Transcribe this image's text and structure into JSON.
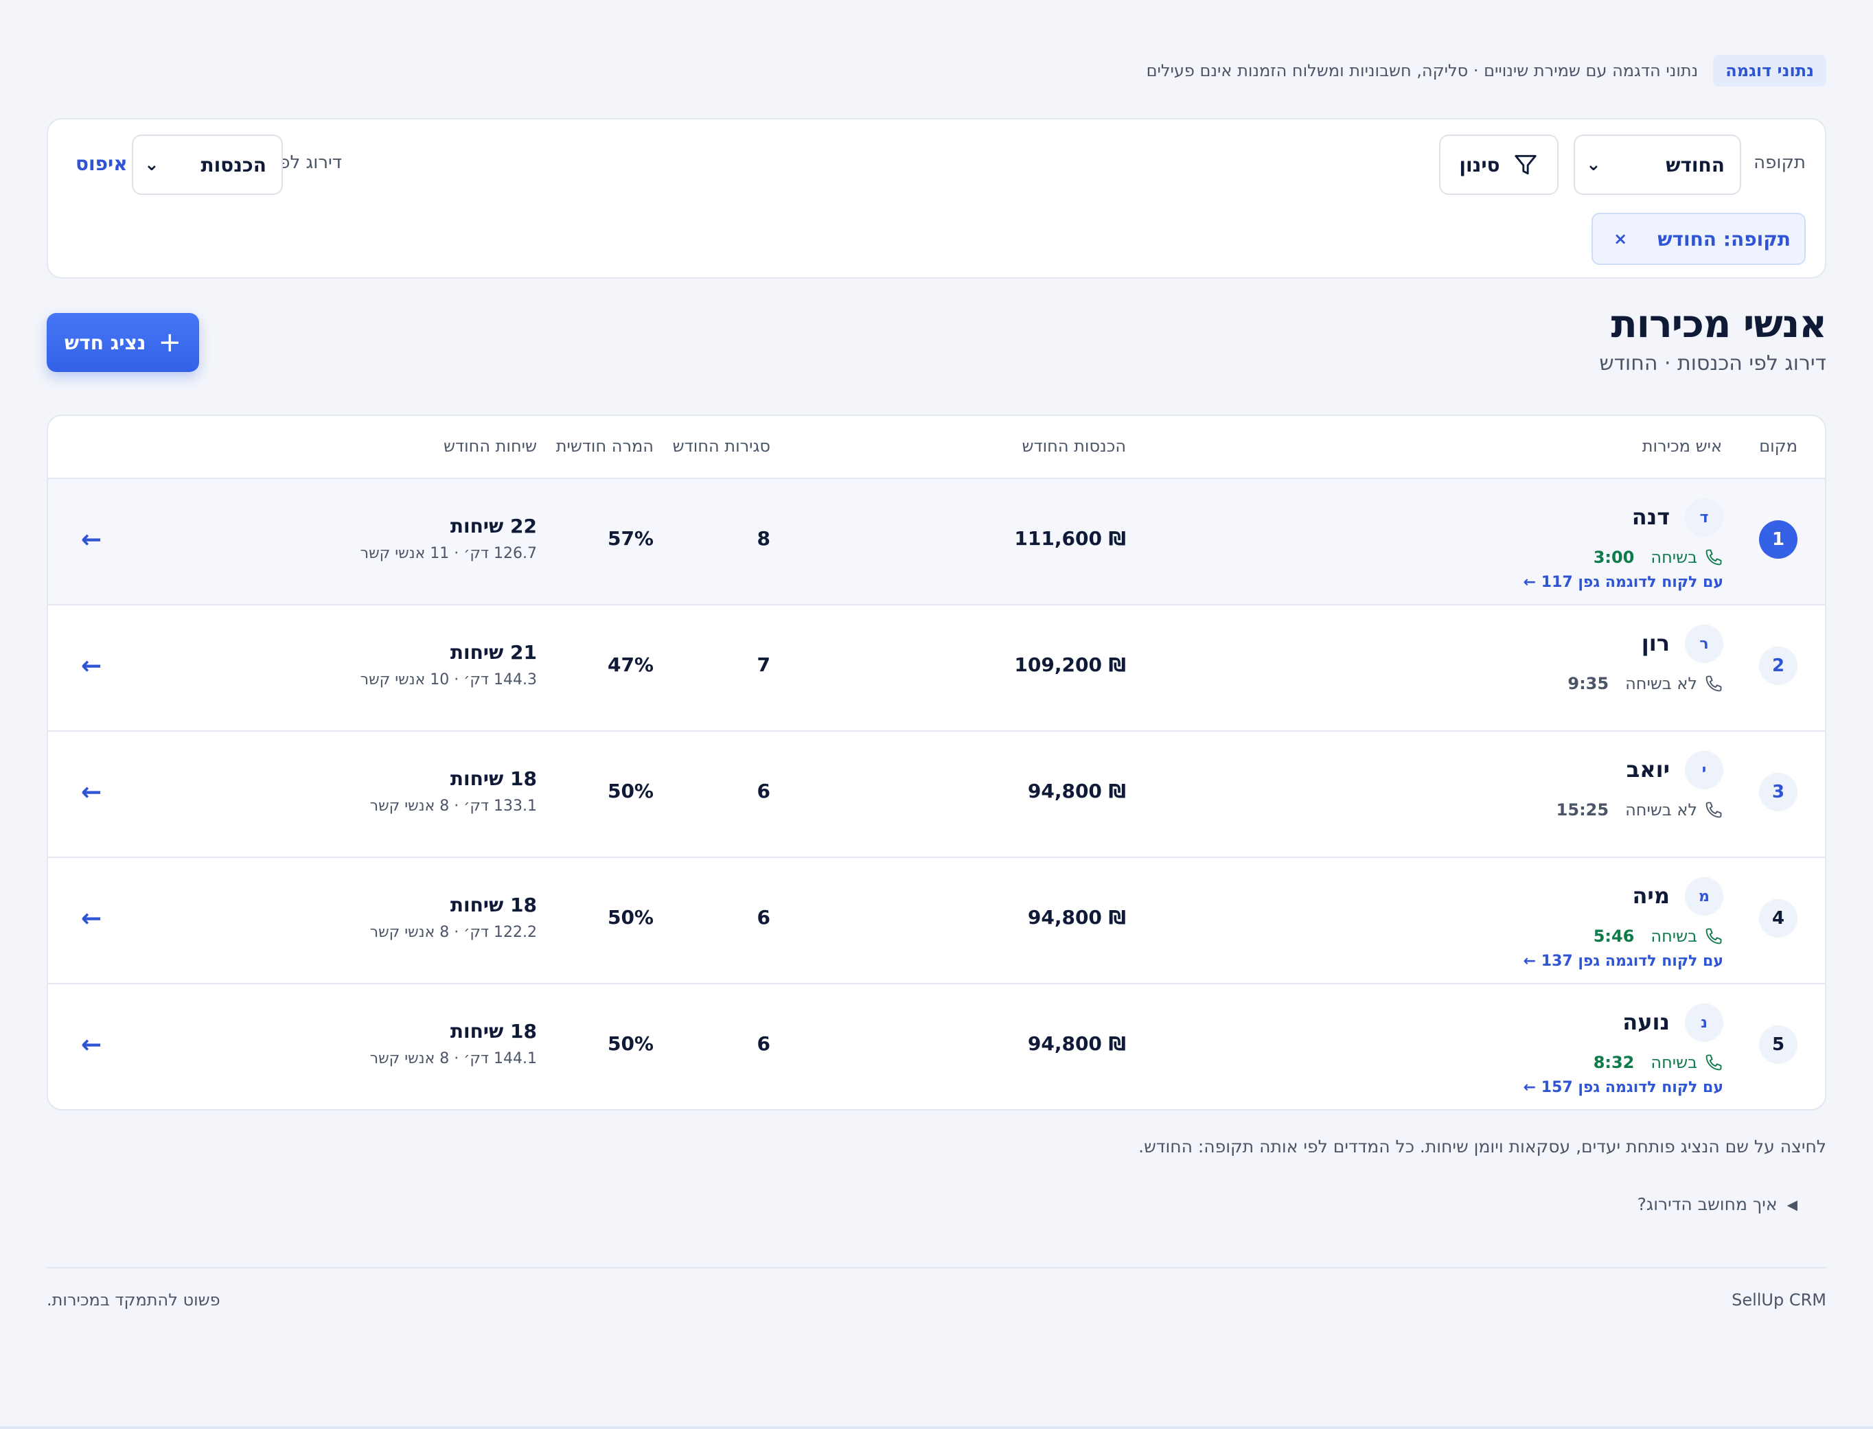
{
  "demo": {
    "badge": "נתוני דוגמה",
    "text": "נתוני הדגמה עם שמירת שינויים · סליקה, חשבוניות ומשלוח הזמנות אינם פעילים"
  },
  "filters": {
    "period_label": "תקופה",
    "period_value": "החודש",
    "filter_button": "סינון",
    "sort_label": "דירוג לפי",
    "sort_value": "הכנסות",
    "reset": "איפוס",
    "chip_label": "תקופה: החודש",
    "chip_remove": "×"
  },
  "header": {
    "title": "אנשי מכירות",
    "subtitle": "דירוג לפי הכנסות · החודש",
    "new_button": "נציג חדש"
  },
  "table": {
    "columns": {
      "rank": "מקום",
      "rep": "איש מכירות",
      "revenue": "הכנסות החודש",
      "closes": "סגירות החודש",
      "conversion": "המרה חודשית",
      "calls": "שיחות החודש"
    },
    "rows": [
      {
        "rank": "1",
        "initial": "ד",
        "name": "דנה",
        "status": "בשיחה",
        "time": "3:00",
        "active": true,
        "client": "עם לקוח לדוגמה גפן 117 ←",
        "revenue": "₪ 111,600",
        "closes": "8",
        "conversion": "57%",
        "calls": "22 שיחות",
        "calls_detail": "126.7 דק׳ · 11 אנשי קשר"
      },
      {
        "rank": "2",
        "initial": "ר",
        "name": "רון",
        "status": "לא בשיחה",
        "time": "9:35",
        "active": false,
        "client": "",
        "revenue": "₪ 109,200",
        "closes": "7",
        "conversion": "47%",
        "calls": "21 שיחות",
        "calls_detail": "144.3 דק׳ · 10 אנשי קשר"
      },
      {
        "rank": "3",
        "initial": "י",
        "name": "יואב",
        "status": "לא בשיחה",
        "time": "15:25",
        "active": false,
        "client": "",
        "revenue": "₪ 94,800",
        "closes": "6",
        "conversion": "50%",
        "calls": "18 שיחות",
        "calls_detail": "133.1 דק׳ · 8 אנשי קשר"
      },
      {
        "rank": "4",
        "initial": "מ",
        "name": "מיה",
        "status": "בשיחה",
        "time": "5:46",
        "active": true,
        "client": "עם לקוח לדוגמה גפן 137 ←",
        "revenue": "₪ 94,800",
        "closes": "6",
        "conversion": "50%",
        "calls": "18 שיחות",
        "calls_detail": "122.2 דק׳ · 8 אנשי קשר"
      },
      {
        "rank": "5",
        "initial": "נ",
        "name": "נועה",
        "status": "בשיחה",
        "time": "8:32",
        "active": true,
        "client": "עם לקוח לדוגמה גפן 157 ←",
        "revenue": "₪ 94,800",
        "closes": "6",
        "conversion": "50%",
        "calls": "18 שיחות",
        "calls_detail": "144.1 דק׳ · 8 אנשי קשר"
      }
    ]
  },
  "hint": "לחיצה על שם הנציג פותחת יעדים, עסקאות ויומן שיחות. כל המדדים לפי אותה תקופה: החודש.",
  "how_ranked": "איך מחושב הדירוג?",
  "footer": {
    "brand": "SellUp CRM",
    "tagline": "פשוט להתמקד במכירות."
  },
  "colors": {
    "accent": "#3461e6",
    "active_call": "#0f7a4a",
    "text": "#0f1b36",
    "muted": "#4a5568"
  },
  "icons": {
    "filter": "filter-funnel-icon",
    "phone": "phone-icon",
    "arrow": "arrow-left-icon",
    "plus": "plus-icon",
    "chevron": "chevron-down-icon",
    "close": "close-icon",
    "disclosure": "disclosure-triangle-icon"
  }
}
